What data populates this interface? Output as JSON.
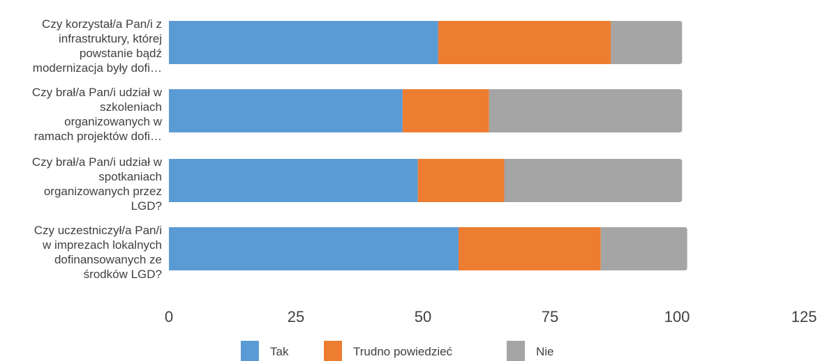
{
  "chart_data": {
    "type": "bar",
    "orientation": "horizontal",
    "stacked": true,
    "categories": [
      [
        "Czy korzystał/a Pan/i z",
        "infrastruktury, której",
        "powstanie bądź",
        "modernizacja były dofi…"
      ],
      [
        "Czy brał/a Pan/i udział w",
        "szkoleniach",
        "organizowanych w",
        "ramach projektów dofi…"
      ],
      [
        "Czy brał/a Pan/i udział w",
        "spotkaniach",
        "organizowanych przez",
        "LGD?"
      ],
      [
        "Czy uczestniczył/a Pan/i",
        "w imprezach lokalnych",
        "dofinansowanych ze",
        "środków LGD?"
      ]
    ],
    "series": [
      {
        "name": "Tak",
        "color": "#5B9BD5",
        "values": [
          53,
          46,
          49,
          57
        ]
      },
      {
        "name": "Trudno powiedzieć",
        "color": "#ED7D31",
        "values": [
          34,
          17,
          17,
          28
        ]
      },
      {
        "name": "Nie",
        "color": "#A5A5A5",
        "values": [
          14,
          38,
          35,
          17
        ]
      }
    ],
    "xticks": [
      0,
      25,
      50,
      75,
      100,
      125
    ],
    "xlim": [
      0,
      125
    ],
    "grid": false,
    "legend_position": "bottom"
  }
}
